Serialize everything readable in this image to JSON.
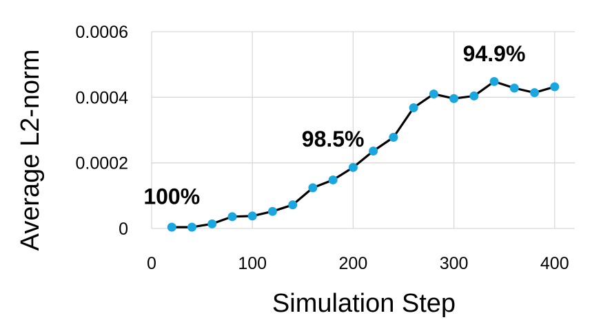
{
  "chart_data": {
    "type": "line",
    "title": "",
    "xlabel": "Simulation Step",
    "ylabel": "Average L2-norm",
    "xlim": [
      0,
      420
    ],
    "ylim": [
      0,
      0.0006
    ],
    "x_ticks": [
      "0",
      "100",
      "200",
      "300",
      "400"
    ],
    "y_ticks": [
      "0",
      "0.0002",
      "0.0004",
      "0.0006"
    ],
    "grid": true,
    "legend": "none",
    "line_color": "#000000",
    "marker_color": "#1aa7e0",
    "series": [
      {
        "x": [
          20,
          40,
          60,
          80,
          100,
          120,
          140,
          160,
          180,
          200,
          220,
          240,
          260,
          280,
          300,
          320,
          340,
          360,
          380,
          400
        ],
        "values": [
          4e-06,
          4e-06,
          1.4e-05,
          3.6e-05,
          3.8e-05,
          5.2e-05,
          7.2e-05,
          0.000124,
          0.000148,
          0.000186,
          0.000236,
          0.000278,
          0.000368,
          0.00041,
          0.000396,
          0.000404,
          0.000448,
          0.000428,
          0.000414,
          0.000432
        ]
      }
    ],
    "annotations": [
      {
        "text": "100%",
        "x": 20,
        "y": 7.5e-05
      },
      {
        "text": "98.5%",
        "x": 180,
        "y": 0.00025
      },
      {
        "text": "94.9%",
        "x": 340,
        "y": 0.00051
      }
    ]
  }
}
